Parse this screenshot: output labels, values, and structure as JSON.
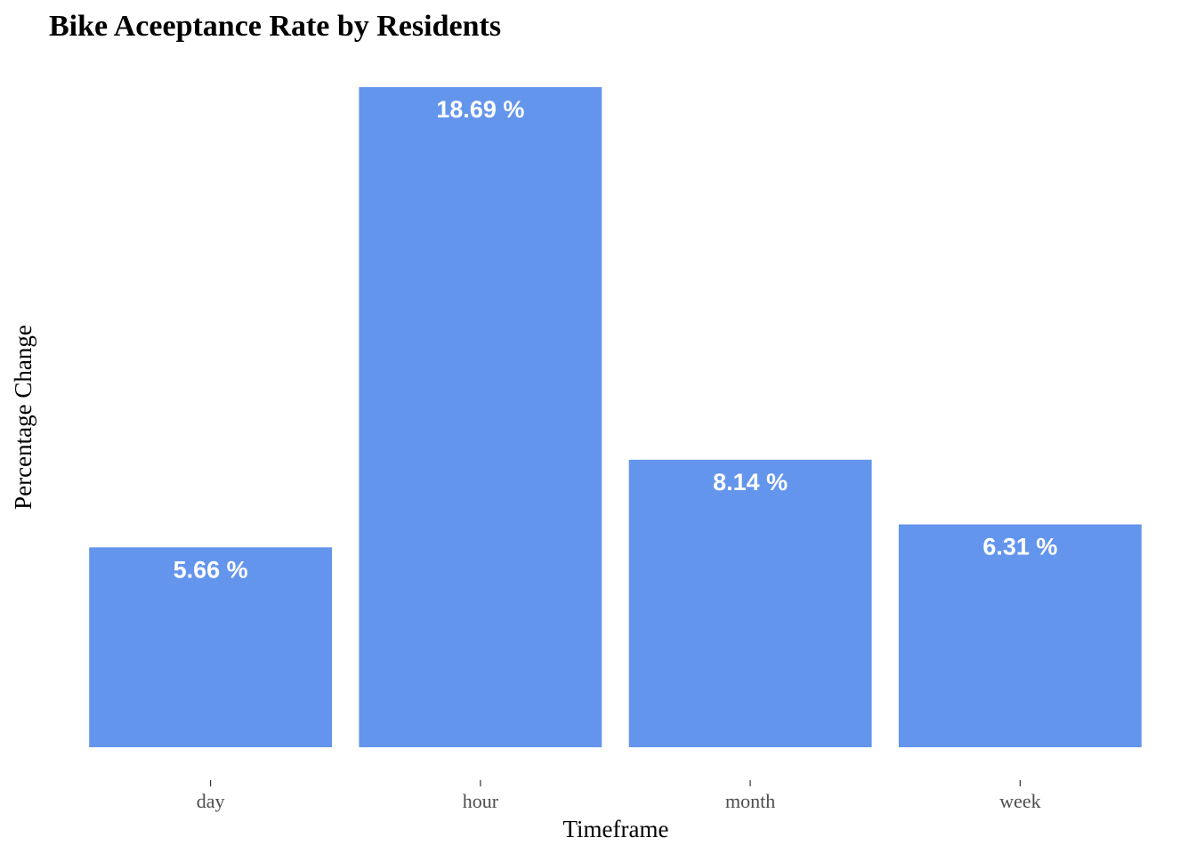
{
  "chart_data": {
    "type": "bar",
    "title": "Bike Aceeptance Rate by Residents",
    "xlabel": "Timeframe",
    "ylabel": "Percentage Change",
    "categories": [
      "day",
      "hour",
      "month",
      "week"
    ],
    "values": [
      5.66,
      18.69,
      8.14,
      6.31
    ],
    "data_labels": [
      "5.66 %",
      "18.69 %",
      "8.14 %",
      "6.31 %"
    ],
    "ylim": [
      0,
      18.69
    ],
    "grid": false,
    "legend": "none",
    "bar_color": "#6495ED",
    "label_color": "#FFFFFF"
  }
}
